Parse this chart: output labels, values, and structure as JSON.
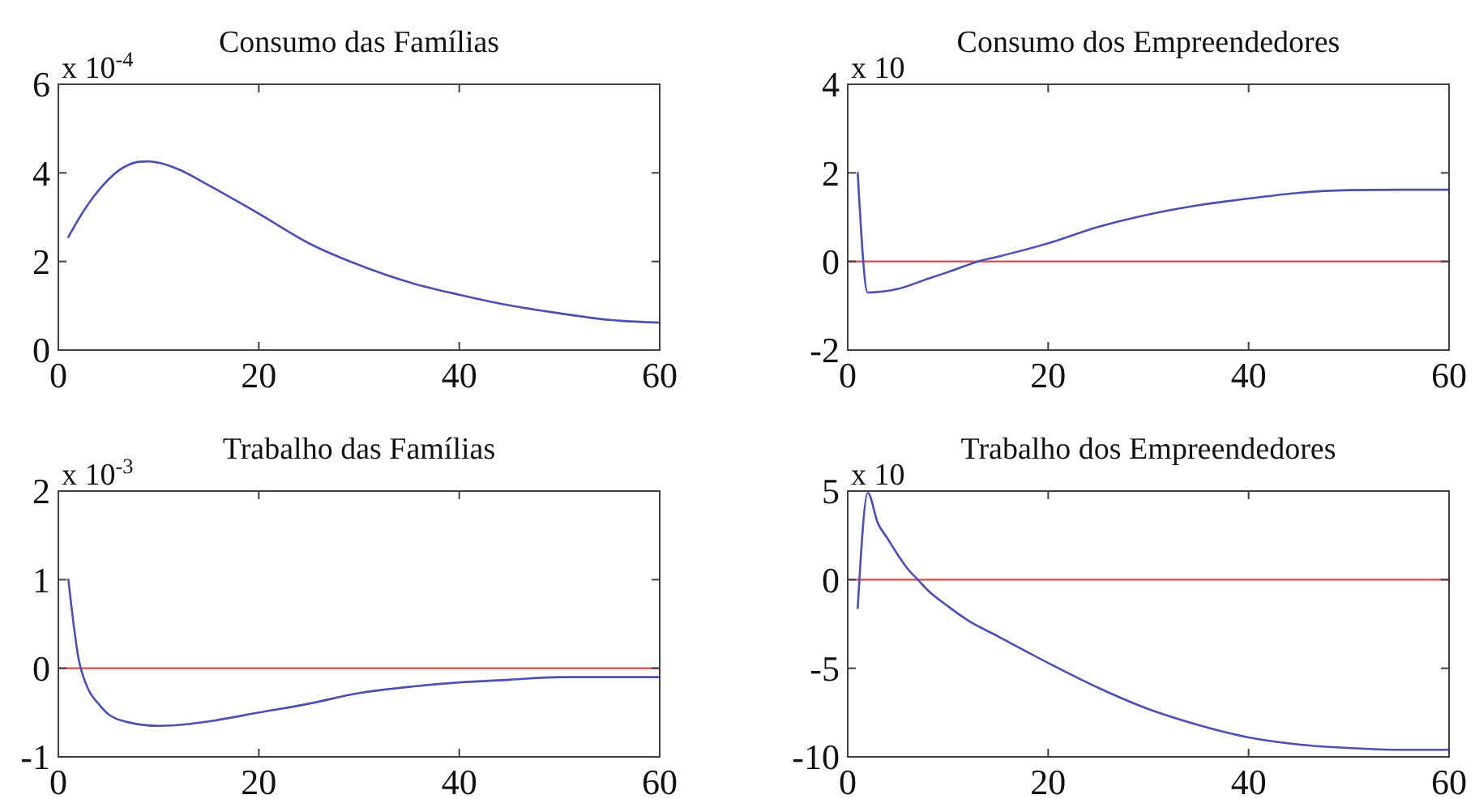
{
  "chart_data": [
    {
      "type": "line",
      "title": "Consumo das Famílias",
      "annotations": [
        "x 10$^{-4}$"
      ],
      "x": [
        1,
        2,
        3,
        4,
        5,
        6,
        7,
        8,
        9,
        10,
        12,
        15,
        20,
        25,
        30,
        35,
        40,
        45,
        50,
        55,
        60
      ],
      "series": [
        {
          "color": "#4f4fb0",
          "values": [
            2.55,
            2.95,
            3.3,
            3.6,
            3.85,
            4.05,
            4.18,
            4.25,
            4.26,
            4.23,
            4.08,
            3.72,
            3.08,
            2.41,
            1.92,
            1.53,
            1.25,
            1.01,
            0.83,
            0.68,
            0.62
          ]
        }
      ],
      "xlim": [
        0,
        60
      ],
      "xticks": [
        0,
        20,
        40,
        60
      ],
      "ylim": [
        0,
        6
      ],
      "yticks": [
        0,
        2,
        4,
        6
      ]
    },
    {
      "type": "line",
      "title": "Consumo dos Empreendedores",
      "annotations": [
        "x 10"
      ],
      "x": [
        1,
        2,
        5,
        8,
        10,
        13,
        15,
        20,
        25,
        30,
        35,
        40,
        45,
        50,
        55,
        60
      ],
      "series": [
        {
          "color": "#4f4fb0",
          "values": [
            2.0,
            -0.7,
            -0.62,
            -0.39,
            -0.24,
            0,
            0.11,
            0.41,
            0.78,
            1.06,
            1.27,
            1.42,
            1.55,
            1.61,
            1.62,
            1.62
          ]
        }
      ],
      "xlim": [
        0,
        60
      ],
      "xticks": [
        0,
        20,
        40,
        60
      ],
      "ylim": [
        -2,
        4
      ],
      "yticks": [
        -2,
        0,
        2,
        4
      ],
      "ref_lines": [
        {
          "axis": "y",
          "value": 0,
          "color": "#d05050"
        }
      ]
    },
    {
      "type": "line",
      "title": "Trabalho das Famílias",
      "annotations": [
        "x 10$^{-3}$"
      ],
      "x": [
        1,
        2,
        3,
        4,
        5,
        7,
        10,
        13,
        15,
        20,
        25,
        30,
        35,
        40,
        45,
        50,
        55,
        60
      ],
      "series": [
        {
          "color": "#4f4fb0",
          "values": [
            1.0,
            0.12,
            -0.24,
            -0.4,
            -0.52,
            -0.61,
            -0.65,
            -0.63,
            -0.6,
            -0.5,
            -0.4,
            -0.28,
            -0.21,
            -0.16,
            -0.13,
            -0.1,
            -0.1,
            -0.1
          ]
        }
      ],
      "xlim": [
        0,
        60
      ],
      "xticks": [
        0,
        20,
        40,
        60
      ],
      "ylim": [
        -1,
        2
      ],
      "yticks": [
        -1,
        0,
        1,
        2
      ],
      "ref_lines": [
        {
          "axis": "y",
          "value": 0,
          "color": "#d05050"
        }
      ]
    },
    {
      "type": "line",
      "title": "Trabalho dos Empreendedores",
      "annotations": [
        "x 10"
      ],
      "x": [
        1,
        2,
        3,
        4,
        5,
        6,
        7,
        8,
        10,
        12,
        15,
        20,
        25,
        30,
        35,
        40,
        45,
        50,
        55,
        60
      ],
      "series": [
        {
          "color": "#4f4fb0",
          "values": [
            -1.6,
            4.9,
            3.2,
            2.3,
            1.4,
            0.6,
            0,
            -0.6,
            -1.5,
            -2.3,
            -3.2,
            -4.7,
            -6.1,
            -7.3,
            -8.2,
            -8.9,
            -9.3,
            -9.5,
            -9.6,
            -9.6
          ]
        }
      ],
      "xlim": [
        0,
        60
      ],
      "xticks": [
        0,
        20,
        40,
        60
      ],
      "ylim": [
        -10,
        5
      ],
      "yticks": [
        -10,
        -5,
        0,
        5
      ],
      "ref_lines": [
        {
          "axis": "y",
          "value": 0,
          "color": "#d05050"
        }
      ]
    }
  ]
}
